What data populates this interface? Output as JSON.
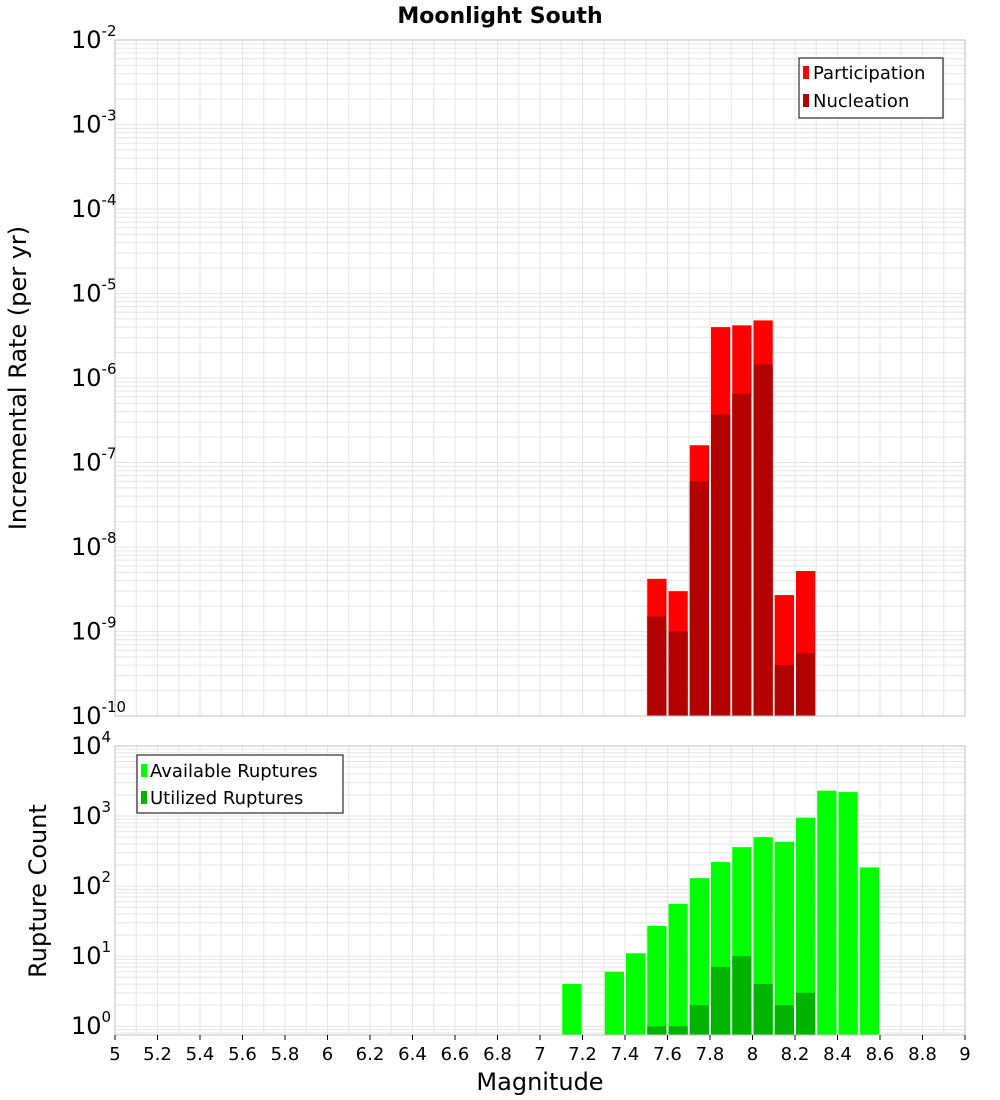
{
  "title": "Moonlight South",
  "colors": {
    "participation": "#ff0000",
    "nucleation": "#b30000",
    "available": "#00ff00",
    "utilized": "#00b300",
    "grid": "#e6e6e6",
    "plot_border": "#c0c0c0"
  },
  "chart_data": [
    {
      "type": "bar",
      "yscale": "log",
      "ylabel": "Incremental Rate (per yr)",
      "xlim": [
        5,
        9
      ],
      "ylim": [
        1e-10,
        0.01
      ],
      "bin_width": 0.1,
      "grid": true,
      "legend_position": "top-right",
      "y_ticks": [
        {
          "base": "10",
          "exp": "-10"
        },
        {
          "base": "10",
          "exp": "-9"
        },
        {
          "base": "10",
          "exp": "-8"
        },
        {
          "base": "10",
          "exp": "-7"
        },
        {
          "base": "10",
          "exp": "-6"
        },
        {
          "base": "10",
          "exp": "-5"
        },
        {
          "base": "10",
          "exp": "-4"
        },
        {
          "base": "10",
          "exp": "-3"
        },
        {
          "base": "10",
          "exp": "-2"
        }
      ],
      "series": [
        {
          "name": "Participation",
          "color": "#ff0000",
          "x": [
            7.55,
            7.65,
            7.75,
            7.85,
            7.95,
            8.05,
            8.15,
            8.25
          ],
          "values": [
            4.2e-09,
            3e-09,
            1.6e-07,
            4e-06,
            4.2e-06,
            4.8e-06,
            2.7e-09,
            5.2e-09
          ]
        },
        {
          "name": "Nucleation",
          "color": "#b30000",
          "x": [
            7.55,
            7.65,
            7.75,
            7.85,
            7.95,
            8.05,
            8.15,
            8.25
          ],
          "values": [
            1.5e-09,
            1e-09,
            6e-08,
            3.7e-07,
            6.5e-07,
            1.45e-06,
            4e-10,
            5.5e-10
          ]
        }
      ]
    },
    {
      "type": "bar",
      "yscale": "log",
      "xlabel": "Magnitude",
      "ylabel": "Rupture Count",
      "xlim": [
        5,
        9
      ],
      "ylim": [
        0.75,
        10000
      ],
      "bin_width": 0.1,
      "grid": true,
      "legend_position": "top-left",
      "x_ticks": [
        "5",
        "5.2",
        "5.4",
        "5.6",
        "5.8",
        "6",
        "6.2",
        "6.4",
        "6.6",
        "6.8",
        "7",
        "7.2",
        "7.4",
        "7.6",
        "7.8",
        "8",
        "8.2",
        "8.4",
        "8.6",
        "8.8",
        "9"
      ],
      "y_ticks": [
        {
          "base": "10",
          "exp": "0"
        },
        {
          "base": "10",
          "exp": "1"
        },
        {
          "base": "10",
          "exp": "2"
        },
        {
          "base": "10",
          "exp": "3"
        },
        {
          "base": "10",
          "exp": "4"
        }
      ],
      "series": [
        {
          "name": "Available Ruptures",
          "color": "#00ff00",
          "x": [
            7.15,
            7.35,
            7.45,
            7.55,
            7.65,
            7.75,
            7.85,
            7.95,
            8.05,
            8.15,
            8.25,
            8.35,
            8.45,
            8.55
          ],
          "values": [
            4,
            6,
            11,
            27,
            56,
            130,
            220,
            360,
            500,
            430,
            950,
            2300,
            2200,
            185
          ]
        },
        {
          "name": "Utilized Ruptures",
          "color": "#00b300",
          "x": [
            7.55,
            7.65,
            7.75,
            7.85,
            7.95,
            8.05,
            8.15,
            8.25
          ],
          "values": [
            1,
            1,
            2,
            7,
            10,
            4,
            2,
            3
          ]
        }
      ]
    }
  ]
}
